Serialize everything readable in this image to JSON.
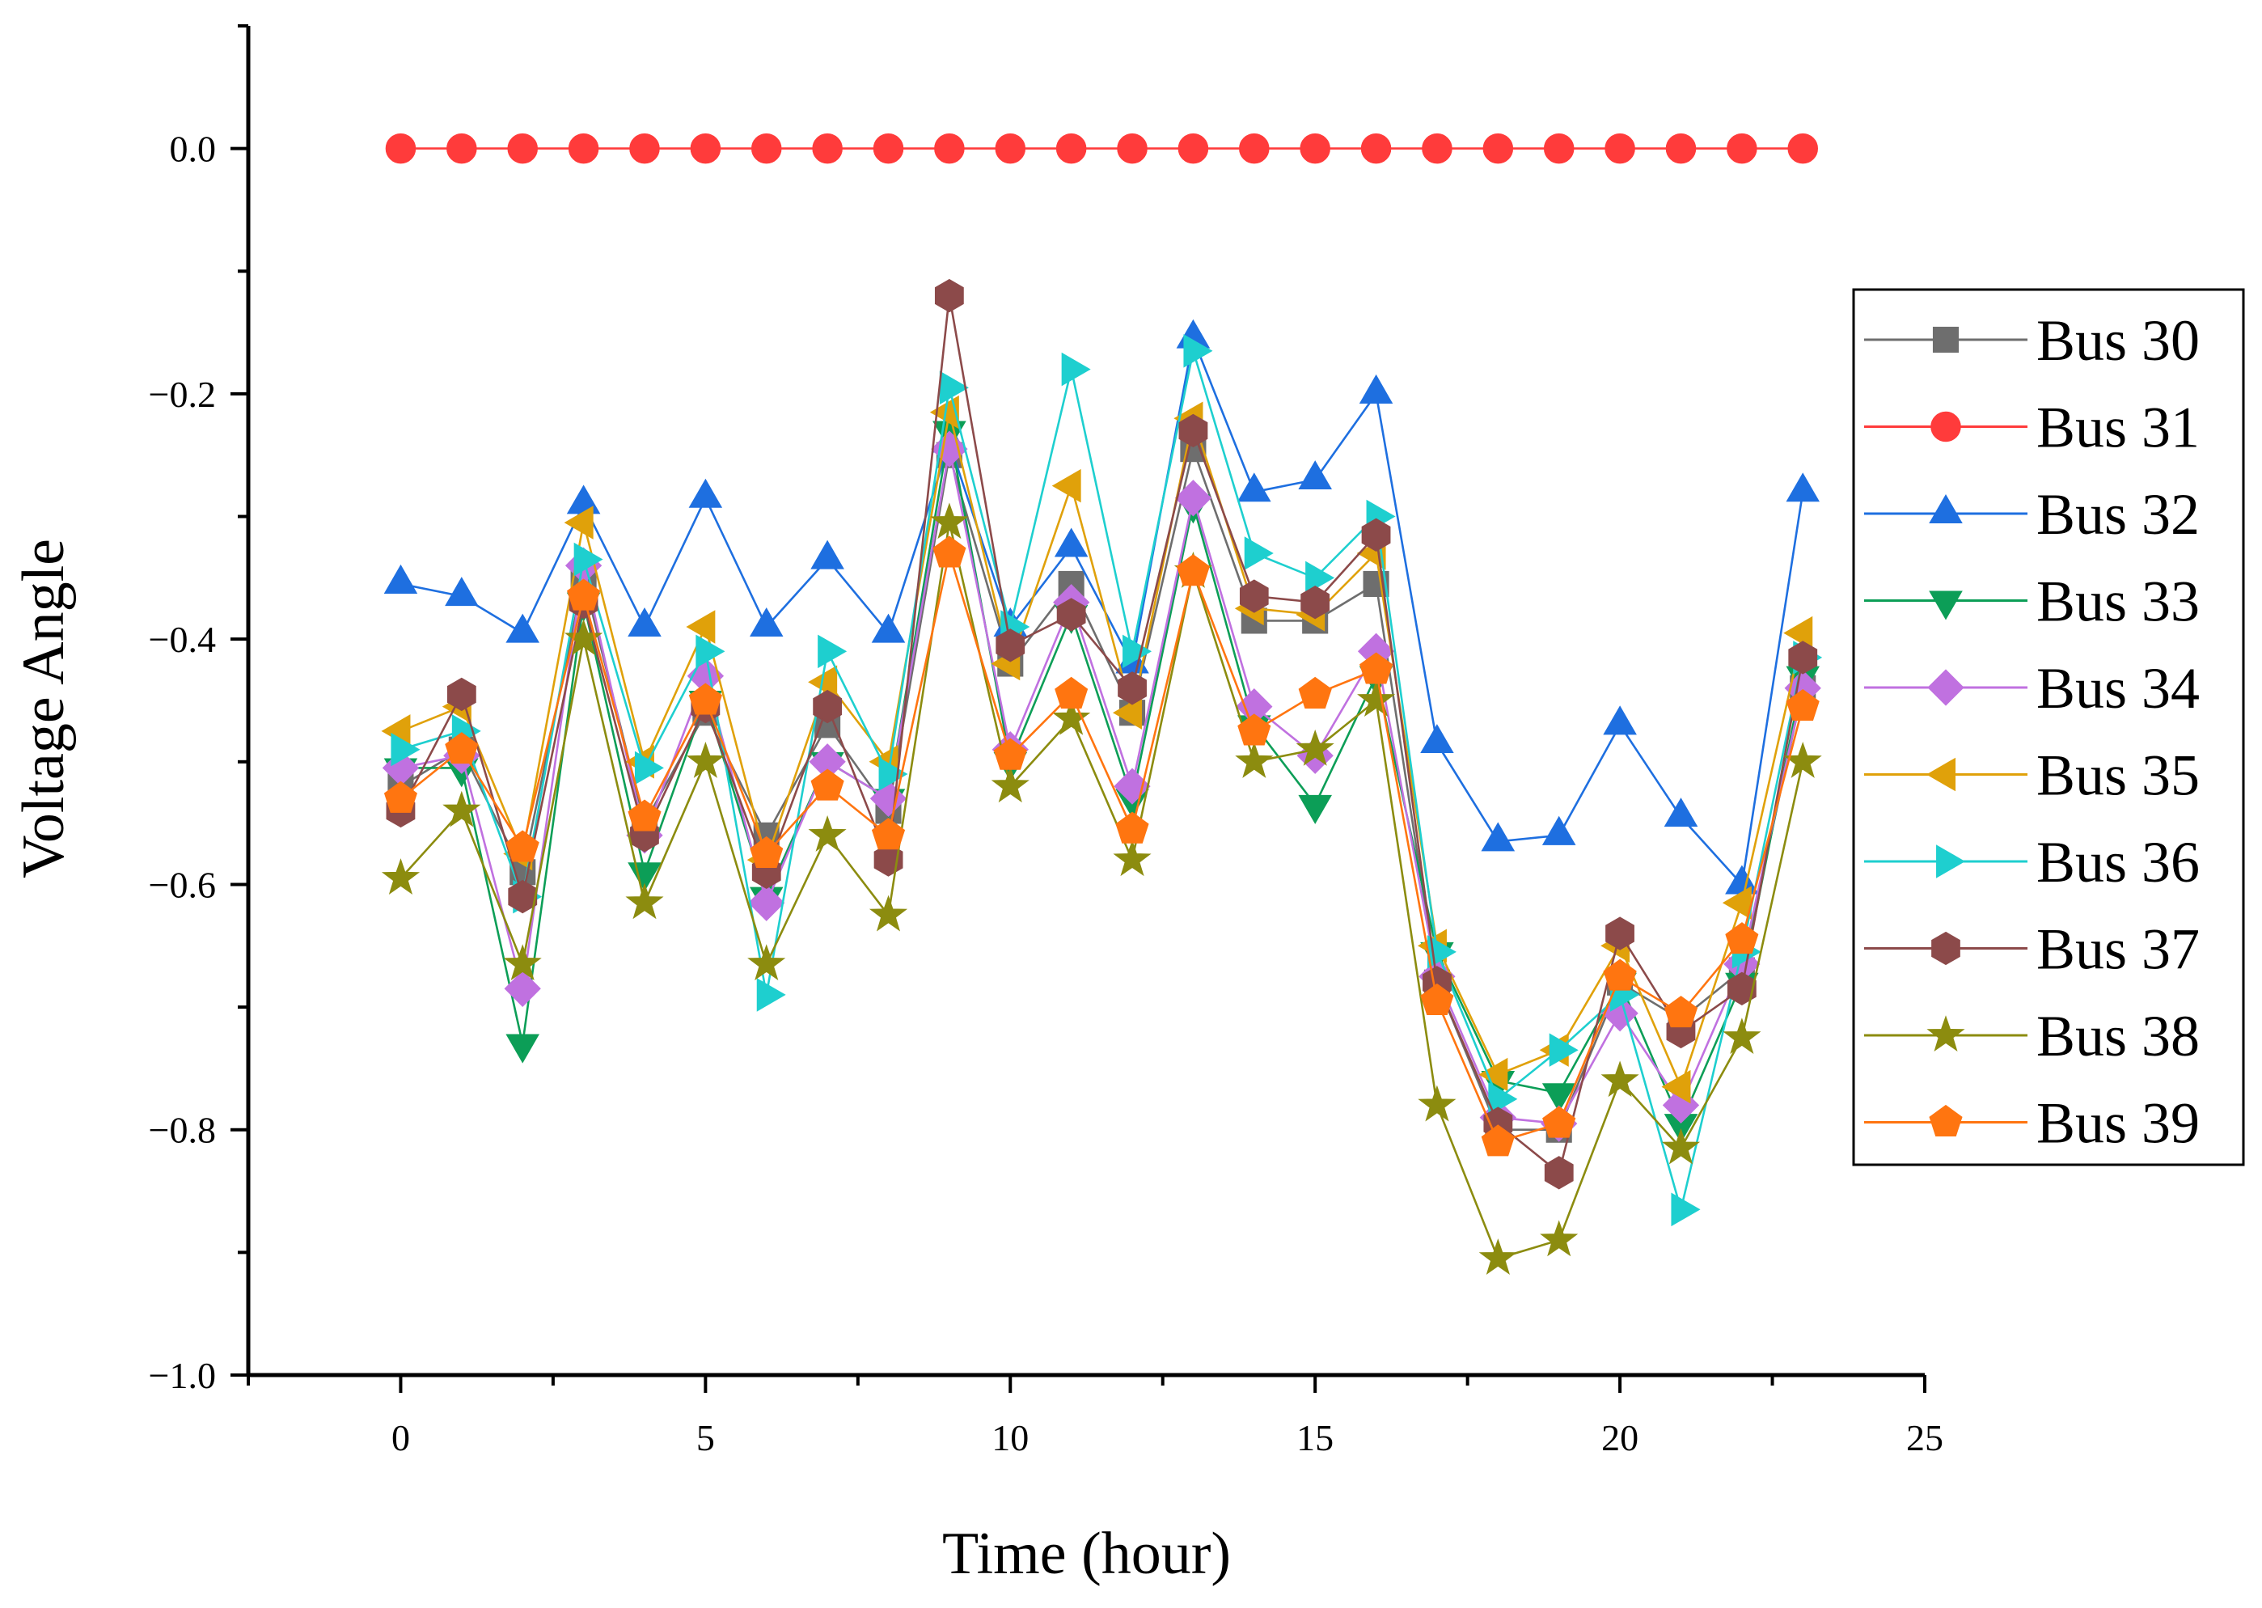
{
  "chart_data": {
    "type": "line",
    "title": "",
    "xlabel": "Time (hour)",
    "ylabel": "Voltage Angle",
    "xlim": [
      -2.5,
      25
    ],
    "ylim": [
      -1.0,
      0.1
    ],
    "xticks": [
      0,
      5,
      10,
      15,
      20,
      25
    ],
    "xtick_labels": [
      "0",
      "5",
      "10",
      "15",
      "20",
      "25"
    ],
    "yticks": [
      0.0,
      -0.2,
      -0.4,
      -0.6,
      -0.8,
      -1.0
    ],
    "ytick_labels": [
      "0.0",
      "−0.2",
      "−0.4",
      "−0.6",
      "−0.8",
      "−1.0"
    ],
    "grid": false,
    "legend_position": "right",
    "x": [
      0,
      1,
      2,
      3,
      4,
      5,
      6,
      7,
      8,
      9,
      10,
      11,
      12,
      13,
      14,
      15,
      16,
      17,
      18,
      19,
      20,
      21,
      22,
      23
    ],
    "series": [
      {
        "name": "Bus 30",
        "color": "#6e6e6e",
        "marker": "square",
        "values": [
          -0.52,
          -0.49,
          -0.59,
          -0.35,
          -0.55,
          -0.46,
          -0.56,
          -0.47,
          -0.54,
          -0.25,
          -0.42,
          -0.355,
          -0.46,
          -0.245,
          -0.385,
          -0.385,
          -0.355,
          -0.68,
          -0.8,
          -0.8,
          -0.68,
          -0.71,
          -0.67,
          -0.44
        ]
      },
      {
        "name": "Bus 31",
        "color": "#ff3b3b",
        "marker": "circle",
        "values": [
          0,
          0,
          0,
          0,
          0,
          0,
          0,
          0,
          0,
          0,
          0,
          0,
          0,
          0,
          0,
          0,
          0,
          0,
          0,
          0,
          0,
          0,
          0,
          0
        ]
      },
      {
        "name": "Bus 32",
        "color": "#1e6fe0",
        "marker": "triangle-up",
        "values": [
          -0.355,
          -0.365,
          -0.395,
          -0.29,
          -0.39,
          -0.285,
          -0.39,
          -0.335,
          -0.395,
          -0.24,
          -0.39,
          -0.325,
          -0.42,
          -0.155,
          -0.28,
          -0.27,
          -0.2,
          -0.485,
          -0.565,
          -0.56,
          -0.47,
          -0.545,
          -0.6,
          -0.28
        ]
      },
      {
        "name": "Bus 33",
        "color": "#0c9e57",
        "marker": "triangle-down",
        "values": [
          -0.505,
          -0.505,
          -0.73,
          -0.37,
          -0.59,
          -0.45,
          -0.61,
          -0.5,
          -0.53,
          -0.23,
          -0.5,
          -0.38,
          -0.53,
          -0.29,
          -0.47,
          -0.535,
          -0.43,
          -0.655,
          -0.76,
          -0.77,
          -0.68,
          -0.795,
          -0.68,
          -0.43
        ]
      },
      {
        "name": "Bus 34",
        "color": "#c071e0",
        "marker": "diamond",
        "values": [
          -0.505,
          -0.495,
          -0.685,
          -0.34,
          -0.56,
          -0.43,
          -0.615,
          -0.5,
          -0.53,
          -0.245,
          -0.49,
          -0.37,
          -0.52,
          -0.285,
          -0.455,
          -0.495,
          -0.41,
          -0.675,
          -0.79,
          -0.795,
          -0.705,
          -0.78,
          -0.665,
          -0.44
        ]
      },
      {
        "name": "Bus 35",
        "color": "#e0a10a",
        "marker": "triangle-left",
        "values": [
          -0.475,
          -0.455,
          -0.575,
          -0.305,
          -0.5,
          -0.39,
          -0.58,
          -0.435,
          -0.5,
          -0.215,
          -0.42,
          -0.275,
          -0.46,
          -0.22,
          -0.375,
          -0.38,
          -0.33,
          -0.65,
          -0.755,
          -0.735,
          -0.65,
          -0.765,
          -0.615,
          -0.395
        ]
      },
      {
        "name": "Bus 36",
        "color": "#1ecfcf",
        "marker": "triangle-right",
        "values": [
          -0.49,
          -0.475,
          -0.61,
          -0.335,
          -0.505,
          -0.41,
          -0.69,
          -0.41,
          -0.51,
          -0.195,
          -0.39,
          -0.18,
          -0.41,
          -0.165,
          -0.33,
          -0.35,
          -0.3,
          -0.655,
          -0.775,
          -0.735,
          -0.69,
          -0.865,
          -0.655,
          -0.415
        ]
      },
      {
        "name": "Bus 37",
        "color": "#8c4a4a",
        "marker": "hexagon",
        "values": [
          -0.54,
          -0.445,
          -0.61,
          -0.37,
          -0.56,
          -0.455,
          -0.59,
          -0.455,
          -0.58,
          -0.12,
          -0.405,
          -0.38,
          -0.44,
          -0.23,
          -0.365,
          -0.37,
          -0.315,
          -0.68,
          -0.795,
          -0.835,
          -0.64,
          -0.72,
          -0.685,
          -0.415
        ]
      },
      {
        "name": "Bus 38",
        "color": "#8c8c0f",
        "marker": "star",
        "values": [
          -0.595,
          -0.54,
          -0.665,
          -0.4,
          -0.615,
          -0.5,
          -0.665,
          -0.56,
          -0.625,
          -0.305,
          -0.52,
          -0.465,
          -0.58,
          -0.345,
          -0.5,
          -0.49,
          -0.45,
          -0.78,
          -0.905,
          -0.89,
          -0.76,
          -0.815,
          -0.725,
          -0.5
        ]
      },
      {
        "name": "Bus 39",
        "color": "#ff7510",
        "marker": "pentagon",
        "values": [
          -0.53,
          -0.49,
          -0.57,
          -0.365,
          -0.545,
          -0.45,
          -0.575,
          -0.52,
          -0.56,
          -0.33,
          -0.495,
          -0.445,
          -0.555,
          -0.345,
          -0.475,
          -0.445,
          -0.425,
          -0.695,
          -0.81,
          -0.795,
          -0.675,
          -0.705,
          -0.645,
          -0.455
        ]
      }
    ]
  }
}
